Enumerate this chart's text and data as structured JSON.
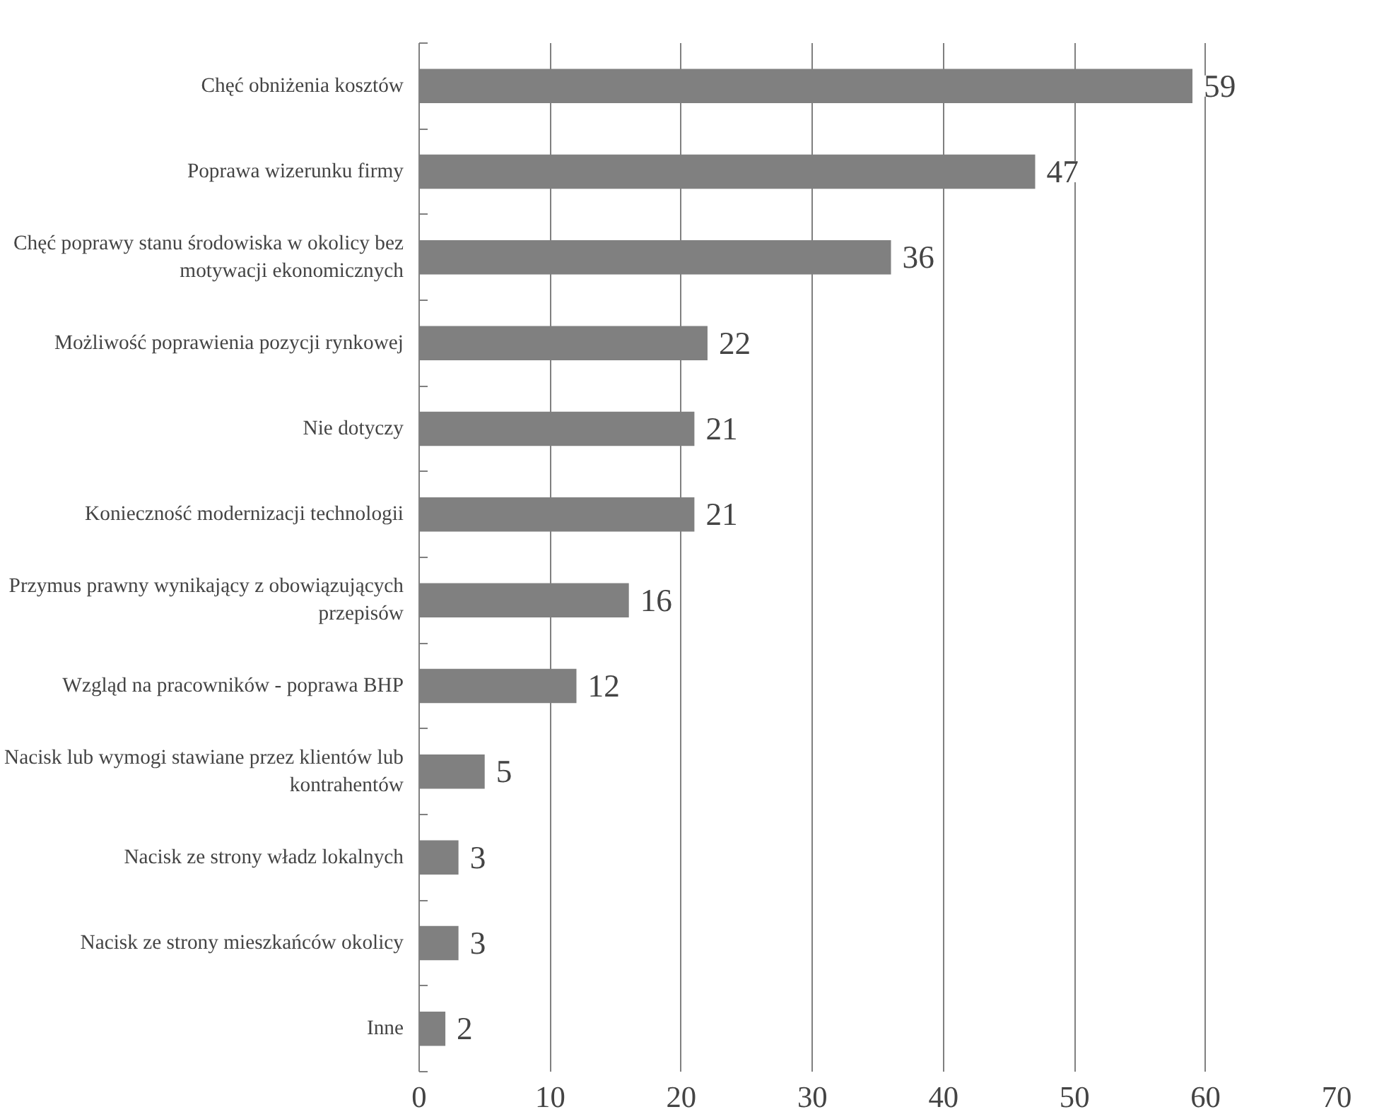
{
  "chart_data": {
    "type": "bar",
    "orientation": "horizontal",
    "categories": [
      "Chęć obniżenia kosztów",
      "Poprawa wizerunku firmy",
      "Chęć poprawy stanu środowiska w okolicy bez motywacji ekonomicznych",
      "Możliwość poprawienia pozycji rynkowej",
      "Nie dotyczy",
      "Konieczność modernizacji technologii",
      "Przymus prawny wynikający z obowiązujących przepisów",
      "Wzgląd na pracowników - poprawa BHP",
      "Nacisk lub wymogi stawiane przez klientów lub kontrahentów",
      "Nacisk ze strony władz lokalnych",
      "Nacisk ze strony mieszkańców okolicy",
      "Inne"
    ],
    "values": [
      59,
      47,
      36,
      22,
      21,
      21,
      16,
      12,
      5,
      3,
      3,
      2
    ],
    "color": "#808080",
    "xlim": [
      0,
      70
    ],
    "xticks": [
      0,
      10,
      20,
      30,
      40,
      50,
      60,
      70
    ],
    "grid": "x",
    "data_labels": true
  }
}
